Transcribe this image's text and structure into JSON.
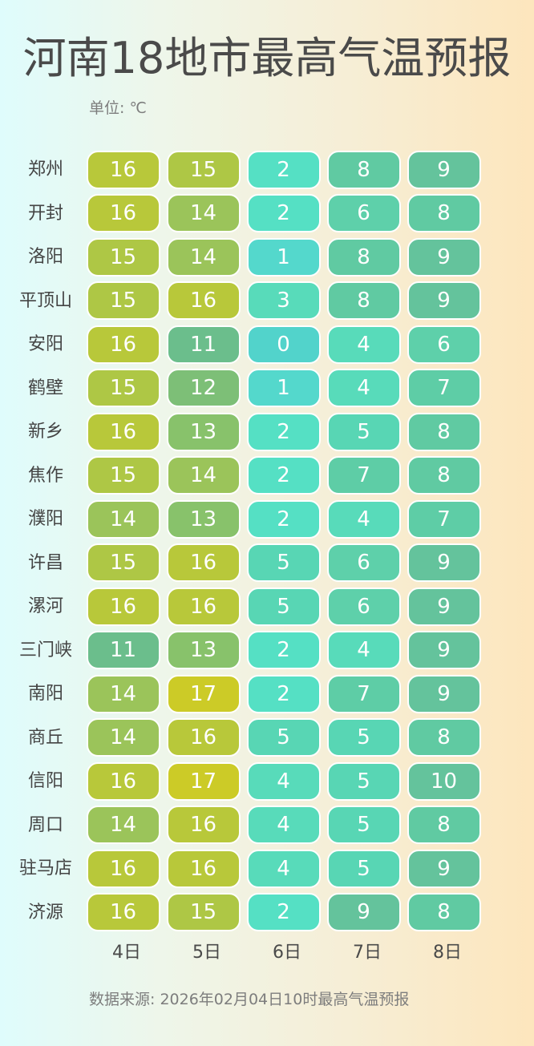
{
  "title": "河南18地市最高气温预报",
  "unit_label": "单位: ℃",
  "source_label": "数据来源: 2026年02月04日10时最高气温预报",
  "columns": [
    "4日",
    "5日",
    "6日",
    "7日",
    "8日"
  ],
  "rows": [
    {
      "city": "郑州",
      "values": [
        "16",
        "15",
        "2",
        "8",
        "9"
      ]
    },
    {
      "city": "开封",
      "values": [
        "16",
        "14",
        "2",
        "6",
        "8"
      ]
    },
    {
      "city": "洛阳",
      "values": [
        "15",
        "14",
        "1",
        "8",
        "9"
      ]
    },
    {
      "city": "平顶山",
      "values": [
        "15",
        "16",
        "3",
        "8",
        "9"
      ]
    },
    {
      "city": "安阳",
      "values": [
        "16",
        "11",
        "0",
        "4",
        "6"
      ]
    },
    {
      "city": "鹤壁",
      "values": [
        "15",
        "12",
        "1",
        "4",
        "7"
      ]
    },
    {
      "city": "新乡",
      "values": [
        "16",
        "13",
        "2",
        "5",
        "8"
      ]
    },
    {
      "city": "焦作",
      "values": [
        "15",
        "14",
        "2",
        "7",
        "8"
      ]
    },
    {
      "city": "濮阳",
      "values": [
        "14",
        "13",
        "2",
        "4",
        "7"
      ]
    },
    {
      "city": "许昌",
      "values": [
        "15",
        "16",
        "5",
        "6",
        "9"
      ]
    },
    {
      "city": "漯河",
      "values": [
        "16",
        "16",
        "5",
        "6",
        "9"
      ]
    },
    {
      "city": "三门峡",
      "values": [
        "11",
        "13",
        "2",
        "4",
        "9"
      ]
    },
    {
      "city": "南阳",
      "values": [
        "14",
        "17",
        "2",
        "7",
        "9"
      ]
    },
    {
      "city": "商丘",
      "values": [
        "14",
        "16",
        "5",
        "5",
        "8"
      ]
    },
    {
      "city": "信阳",
      "values": [
        "16",
        "17",
        "4",
        "5",
        "10"
      ]
    },
    {
      "city": "周口",
      "values": [
        "14",
        "16",
        "4",
        "5",
        "8"
      ]
    },
    {
      "city": "驻马店",
      "values": [
        "16",
        "16",
        "4",
        "5",
        "9"
      ]
    },
    {
      "city": "济源",
      "values": [
        "16",
        "15",
        "2",
        "9",
        "8"
      ]
    }
  ],
  "color_scale": {
    "0": "#52D3CB",
    "1": "#54D8CC",
    "2": "#55E0C4",
    "3": "#58DBBA",
    "4": "#58DBBA",
    "5": "#58D6B4",
    "6": "#5ED0AA",
    "7": "#5ECDA6",
    "8": "#60CAA2",
    "9": "#64C39C",
    "10": "#64C39C",
    "11": "#6BBE8C",
    "12": "#7DBF77",
    "13": "#88C26B",
    "14": "#9BC45A",
    "15": "#AEC745",
    "16": "#B8C83A",
    "17": "#CCCB27"
  },
  "chart_data": {
    "type": "heatmap",
    "title": "河南18地市最高气温预报",
    "subtitle": "单位: ℃",
    "xlabel": "",
    "ylabel": "",
    "x": [
      "4日",
      "5日",
      "6日",
      "7日",
      "8日"
    ],
    "y": [
      "郑州",
      "开封",
      "洛阳",
      "平顶山",
      "安阳",
      "鹤壁",
      "新乡",
      "焦作",
      "濮阳",
      "许昌",
      "漯河",
      "三门峡",
      "南阳",
      "商丘",
      "信阳",
      "周口",
      "驻马店",
      "济源"
    ],
    "values": [
      [
        16,
        15,
        2,
        8,
        9
      ],
      [
        16,
        14,
        2,
        6,
        8
      ],
      [
        15,
        14,
        1,
        8,
        9
      ],
      [
        15,
        16,
        3,
        8,
        9
      ],
      [
        16,
        11,
        0,
        4,
        6
      ],
      [
        15,
        12,
        1,
        4,
        7
      ],
      [
        16,
        13,
        2,
        5,
        8
      ],
      [
        15,
        14,
        2,
        7,
        8
      ],
      [
        14,
        13,
        2,
        4,
        7
      ],
      [
        15,
        16,
        5,
        6,
        9
      ],
      [
        16,
        16,
        5,
        6,
        9
      ],
      [
        11,
        13,
        2,
        4,
        9
      ],
      [
        14,
        17,
        2,
        7,
        9
      ],
      [
        14,
        16,
        5,
        5,
        8
      ],
      [
        16,
        17,
        4,
        5,
        10
      ],
      [
        14,
        16,
        4,
        5,
        8
      ],
      [
        16,
        16,
        4,
        5,
        9
      ],
      [
        16,
        15,
        2,
        9,
        8
      ]
    ],
    "annotation": "数据来源: 2026年02月04日10时最高气温预报",
    "value_range": [
      0,
      17
    ]
  }
}
